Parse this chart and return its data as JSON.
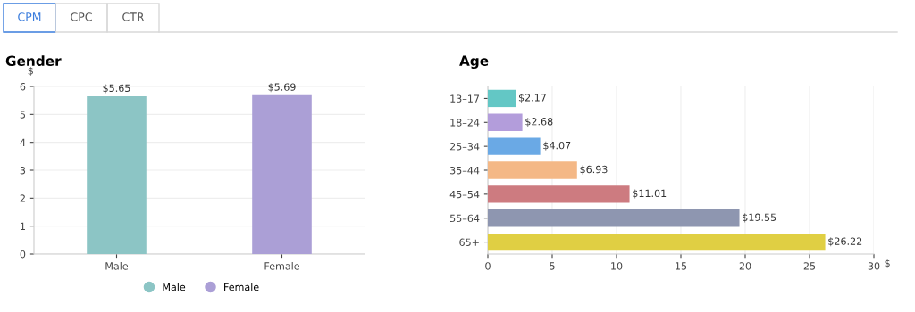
{
  "chart_data": [
    {
      "type": "other",
      "annotations": [
        "CPM",
        "CPC",
        "CTR"
      ]
    },
    {
      "type": "bar",
      "title": "Gender",
      "ylabel": "$",
      "categories": [
        "Male",
        "Female"
      ],
      "series": [
        {
          "name": "Male",
          "color": "#8cc5c5",
          "values": [
            5.65,
            null
          ],
          "value_labels": [
            "$5.65",
            null
          ]
        },
        {
          "name": "Female",
          "color": "#ab9fd6",
          "values": [
            null,
            5.69
          ],
          "value_labels": [
            null,
            "$5.69"
          ]
        }
      ],
      "ylim": [
        0,
        6
      ],
      "yticks": [
        0,
        1,
        2,
        3,
        4,
        5,
        6
      ],
      "grid": "y",
      "legend": "bottom",
      "marker": "circle"
    },
    {
      "type": "bar",
      "orientation": "horizontal",
      "title": "Age",
      "xlabel": "$",
      "categories": [
        "13–17",
        "18–24",
        "25–34",
        "35–44",
        "45–54",
        "55–64",
        "65+"
      ],
      "colors": [
        "#63c7c5",
        "#b39ddb",
        "#6aa9e5",
        "#f4b886",
        "#cd7b80",
        "#8e96b0",
        "#e0cf43"
      ],
      "values": [
        2.17,
        2.68,
        4.07,
        6.93,
        11.01,
        19.55,
        26.22
      ],
      "value_labels": [
        "$2.17",
        "$2.68",
        "$4.07",
        "$6.93",
        "$11.01",
        "$19.55",
        "$26.22"
      ],
      "xlim": [
        0,
        30
      ],
      "xticks": [
        0,
        5,
        10,
        15,
        20,
        25,
        30
      ],
      "grid": "x"
    }
  ]
}
